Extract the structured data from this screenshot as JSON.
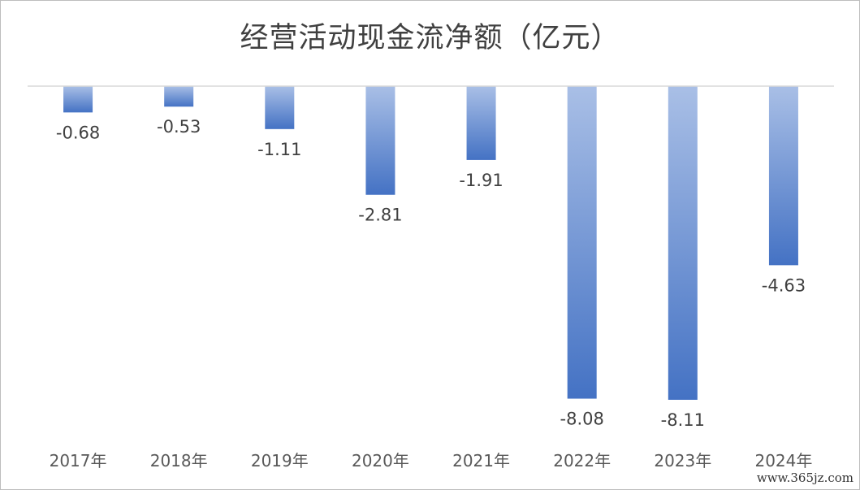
{
  "chart_data": {
    "type": "bar",
    "title": "经营活动现金流净额（亿元）",
    "categories": [
      "2017年",
      "2018年",
      "2019年",
      "2020年",
      "2021年",
      "2022年",
      "2023年",
      "2024年"
    ],
    "values": [
      -0.68,
      -0.53,
      -1.11,
      -2.81,
      -1.91,
      -8.08,
      -8.11,
      -4.63
    ],
    "data_labels": [
      "-0.68",
      "-0.53",
      "-1.11",
      "-2.81",
      "-1.91",
      "-8.08",
      "-8.11",
      "-4.63"
    ],
    "xlabel": "",
    "ylabel": "",
    "ylim": [
      -8.11,
      0
    ],
    "grid": false,
    "legend": "none",
    "colors": {
      "bar_top": "#a9bfe6",
      "bar_bottom": "#4472c4",
      "axis": "#d9d9d9",
      "label": "#404040"
    }
  },
  "watermark": "www.365jz.com"
}
